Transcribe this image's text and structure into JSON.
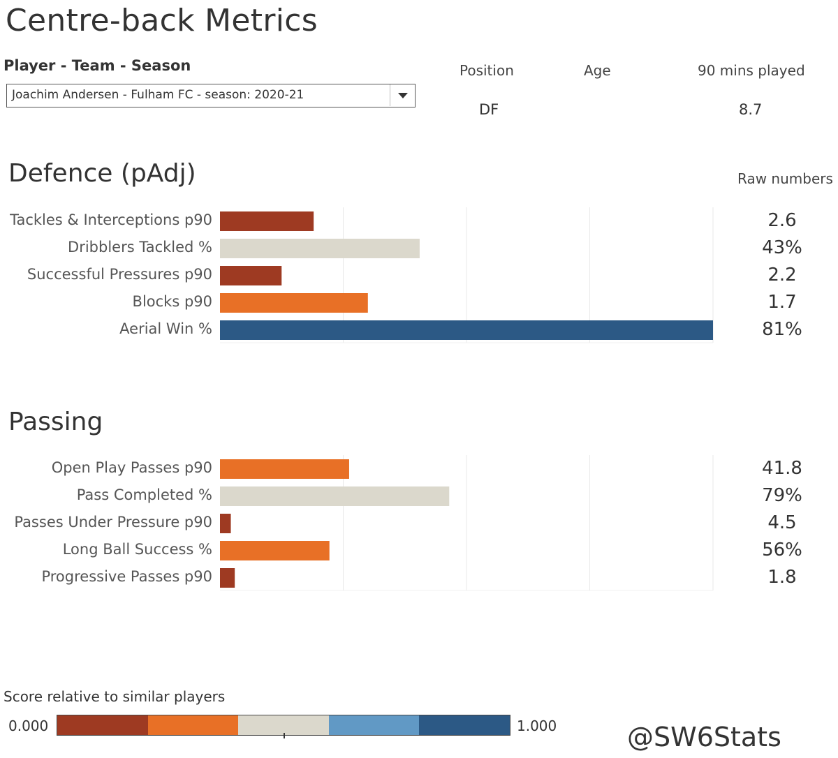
{
  "title": "Centre-back Metrics",
  "filter": {
    "label": "Player - Team - Season",
    "value": "Joachim Andersen - Fulham FC - season: 2020-21"
  },
  "info": {
    "position_label": "Position",
    "age_label": "Age",
    "mins_label": "90 mins played",
    "position_value": "DF",
    "age_value": "",
    "mins_value": "8.7"
  },
  "raw_numbers_label": "Raw numbers",
  "colors": {
    "dark_red": "#9e3a22",
    "orange": "#e87026",
    "beige": "#dbd8cc",
    "light_blue": "#6199c5",
    "dark_blue": "#2c5985",
    "gridline": "#e9e9e9"
  },
  "chart_data": [
    {
      "type": "bar",
      "title": "Defence (pAdj)",
      "orientation": "horizontal",
      "xlim": [
        0,
        1
      ],
      "grid": true,
      "categories": [
        "Tackles & Interceptions p90",
        "Dribblers Tackled %",
        "Successful Pressures p90",
        "Blocks p90",
        "Aerial Win %"
      ],
      "values": [
        0.19,
        0.405,
        0.125,
        0.3,
        1.0
      ],
      "color_keys": [
        "dark_red",
        "beige",
        "dark_red",
        "orange",
        "dark_blue"
      ],
      "raw": [
        "2.6",
        "43%",
        "2.2",
        "1.7",
        "81%"
      ]
    },
    {
      "type": "bar",
      "title": "Passing",
      "orientation": "horizontal",
      "xlim": [
        0,
        1
      ],
      "grid": true,
      "categories": [
        "Open Play Passes p90",
        "Pass Completed %",
        "Passes Under Pressure p90",
        "Long Ball Success %",
        "Progressive Passes p90"
      ],
      "values": [
        0.262,
        0.465,
        0.022,
        0.222,
        0.03
      ],
      "color_keys": [
        "orange",
        "beige",
        "dark_red",
        "orange",
        "dark_red"
      ],
      "raw": [
        "41.8",
        "79%",
        "4.5",
        "56%",
        "1.8"
      ]
    }
  ],
  "legend": {
    "title": "Score relative to similar players",
    "min_label": "0.000",
    "max_label": "1.000",
    "color_keys": [
      "dark_red",
      "orange",
      "beige",
      "light_blue",
      "dark_blue"
    ]
  },
  "handle": "@SW6Stats"
}
